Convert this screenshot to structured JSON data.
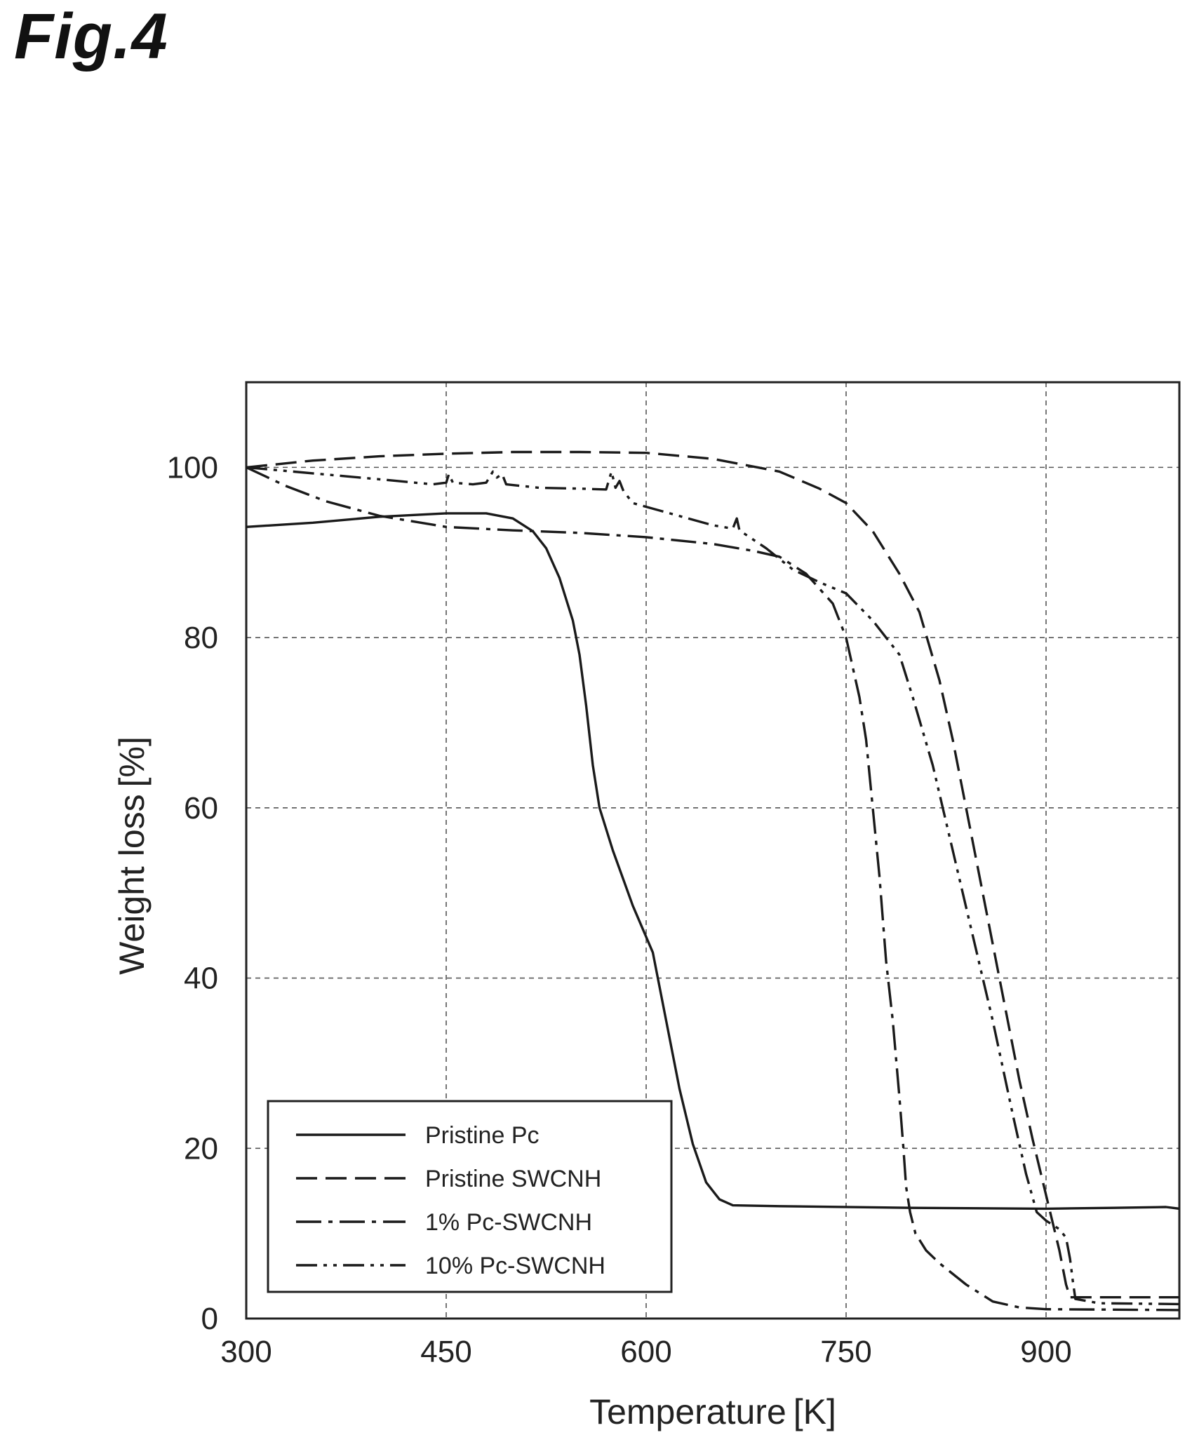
{
  "figure": {
    "label": "Fig.4"
  },
  "chart_data": {
    "type": "line",
    "xlabel": "Temperature [K]",
    "ylabel": "Weight loss [%]",
    "xlim": [
      300,
      1000
    ],
    "ylim": [
      0,
      110
    ],
    "xticks": [
      300,
      450,
      600,
      750,
      900
    ],
    "yticks": [
      0,
      20,
      40,
      60,
      80,
      100
    ],
    "xtick_labels": [
      "300",
      "450",
      "600",
      "750",
      "900"
    ],
    "ytick_labels": [
      "0",
      "20",
      "40",
      "60",
      "80",
      "100"
    ],
    "grid": true,
    "grid_style": "dashed",
    "legend_position": "bottom-left",
    "series": [
      {
        "name": "Pristine Pc",
        "line_style": "solid",
        "points": [
          [
            300,
            93.0
          ],
          [
            350,
            93.5
          ],
          [
            400,
            94.2
          ],
          [
            450,
            94.6
          ],
          [
            480,
            94.6
          ],
          [
            500,
            94.0
          ],
          [
            515,
            92.5
          ],
          [
            525,
            90.5
          ],
          [
            535,
            87.0
          ],
          [
            545,
            82.0
          ],
          [
            550,
            78.0
          ],
          [
            555,
            72.0
          ],
          [
            560,
            65.0
          ],
          [
            565,
            60.0
          ],
          [
            575,
            55.0
          ],
          [
            590,
            48.5
          ],
          [
            605,
            43.0
          ],
          [
            615,
            35.0
          ],
          [
            625,
            27.0
          ],
          [
            635,
            20.5
          ],
          [
            645,
            16.0
          ],
          [
            655,
            14.0
          ],
          [
            665,
            13.3
          ],
          [
            700,
            13.2
          ],
          [
            800,
            13.0
          ],
          [
            900,
            12.9
          ],
          [
            950,
            13.0
          ],
          [
            990,
            13.1
          ],
          [
            1000,
            12.9
          ]
        ]
      },
      {
        "name": "Pristine SWCNH",
        "line_style": "dashed",
        "points": [
          [
            300,
            100.0
          ],
          [
            350,
            100.8
          ],
          [
            400,
            101.3
          ],
          [
            450,
            101.6
          ],
          [
            500,
            101.8
          ],
          [
            550,
            101.8
          ],
          [
            600,
            101.7
          ],
          [
            650,
            101.0
          ],
          [
            700,
            99.5
          ],
          [
            730,
            97.5
          ],
          [
            750,
            95.8
          ],
          [
            770,
            92.5
          ],
          [
            790,
            87.5
          ],
          [
            805,
            83.0
          ],
          [
            820,
            75.0
          ],
          [
            830,
            68.0
          ],
          [
            840,
            60.0
          ],
          [
            850,
            52.0
          ],
          [
            860,
            44.0
          ],
          [
            870,
            36.0
          ],
          [
            880,
            28.0
          ],
          [
            890,
            21.0
          ],
          [
            900,
            14.5
          ],
          [
            910,
            8.0
          ],
          [
            915,
            4.0
          ],
          [
            918,
            2.5
          ],
          [
            930,
            2.5
          ],
          [
            1000,
            2.5
          ]
        ]
      },
      {
        "name": "1% Pc-SWCNH",
        "line_style": "dash-dot",
        "points": [
          [
            300,
            100.0
          ],
          [
            330,
            97.8
          ],
          [
            360,
            96.0
          ],
          [
            400,
            94.3
          ],
          [
            450,
            93.0
          ],
          [
            500,
            92.6
          ],
          [
            550,
            92.3
          ],
          [
            600,
            91.8
          ],
          [
            650,
            91.0
          ],
          [
            680,
            90.2
          ],
          [
            700,
            89.5
          ],
          [
            720,
            87.5
          ],
          [
            740,
            84.0
          ],
          [
            750,
            80.0
          ],
          [
            760,
            73.0
          ],
          [
            765,
            68.0
          ],
          [
            770,
            60.0
          ],
          [
            775,
            52.0
          ],
          [
            780,
            42.0
          ],
          [
            785,
            35.0
          ],
          [
            790,
            26.0
          ],
          [
            793,
            20.0
          ],
          [
            795,
            15.5
          ],
          [
            798,
            12.5
          ],
          [
            802,
            10.0
          ],
          [
            810,
            8.0
          ],
          [
            820,
            6.5
          ],
          [
            840,
            4.0
          ],
          [
            860,
            2.0
          ],
          [
            880,
            1.3
          ],
          [
            900,
            1.1
          ],
          [
            1000,
            1.0
          ]
        ]
      },
      {
        "name": "10% Pc-SWCNH",
        "line_style": "dash-dot-dot",
        "points": [
          [
            300,
            100.0
          ],
          [
            350,
            99.3
          ],
          [
            400,
            98.6
          ],
          [
            440,
            98.0
          ],
          [
            450,
            98.2
          ],
          [
            452,
            99.2
          ],
          [
            455,
            98.2
          ],
          [
            470,
            98.0
          ],
          [
            480,
            98.2
          ],
          [
            485,
            99.5
          ],
          [
            488,
            98.8
          ],
          [
            492,
            99.2
          ],
          [
            495,
            98.0
          ],
          [
            520,
            97.6
          ],
          [
            550,
            97.5
          ],
          [
            570,
            97.4
          ],
          [
            574,
            99.5
          ],
          [
            577,
            97.6
          ],
          [
            580,
            98.4
          ],
          [
            583,
            97.2
          ],
          [
            590,
            95.8
          ],
          [
            620,
            94.5
          ],
          [
            650,
            93.2
          ],
          [
            665,
            92.8
          ],
          [
            668,
            94.0
          ],
          [
            670,
            92.6
          ],
          [
            690,
            90.5
          ],
          [
            710,
            88.0
          ],
          [
            730,
            86.5
          ],
          [
            750,
            85.2
          ],
          [
            770,
            82.0
          ],
          [
            790,
            78.0
          ],
          [
            800,
            73.0
          ],
          [
            815,
            65.0
          ],
          [
            830,
            55.0
          ],
          [
            845,
            45.0
          ],
          [
            860,
            35.0
          ],
          [
            875,
            24.0
          ],
          [
            885,
            17.0
          ],
          [
            893,
            12.5
          ],
          [
            900,
            11.5
          ],
          [
            910,
            10.5
          ],
          [
            915,
            9.5
          ],
          [
            918,
            7.0
          ],
          [
            920,
            4.5
          ],
          [
            922,
            2.3
          ],
          [
            940,
            1.8
          ],
          [
            1000,
            1.7
          ]
        ]
      }
    ]
  }
}
